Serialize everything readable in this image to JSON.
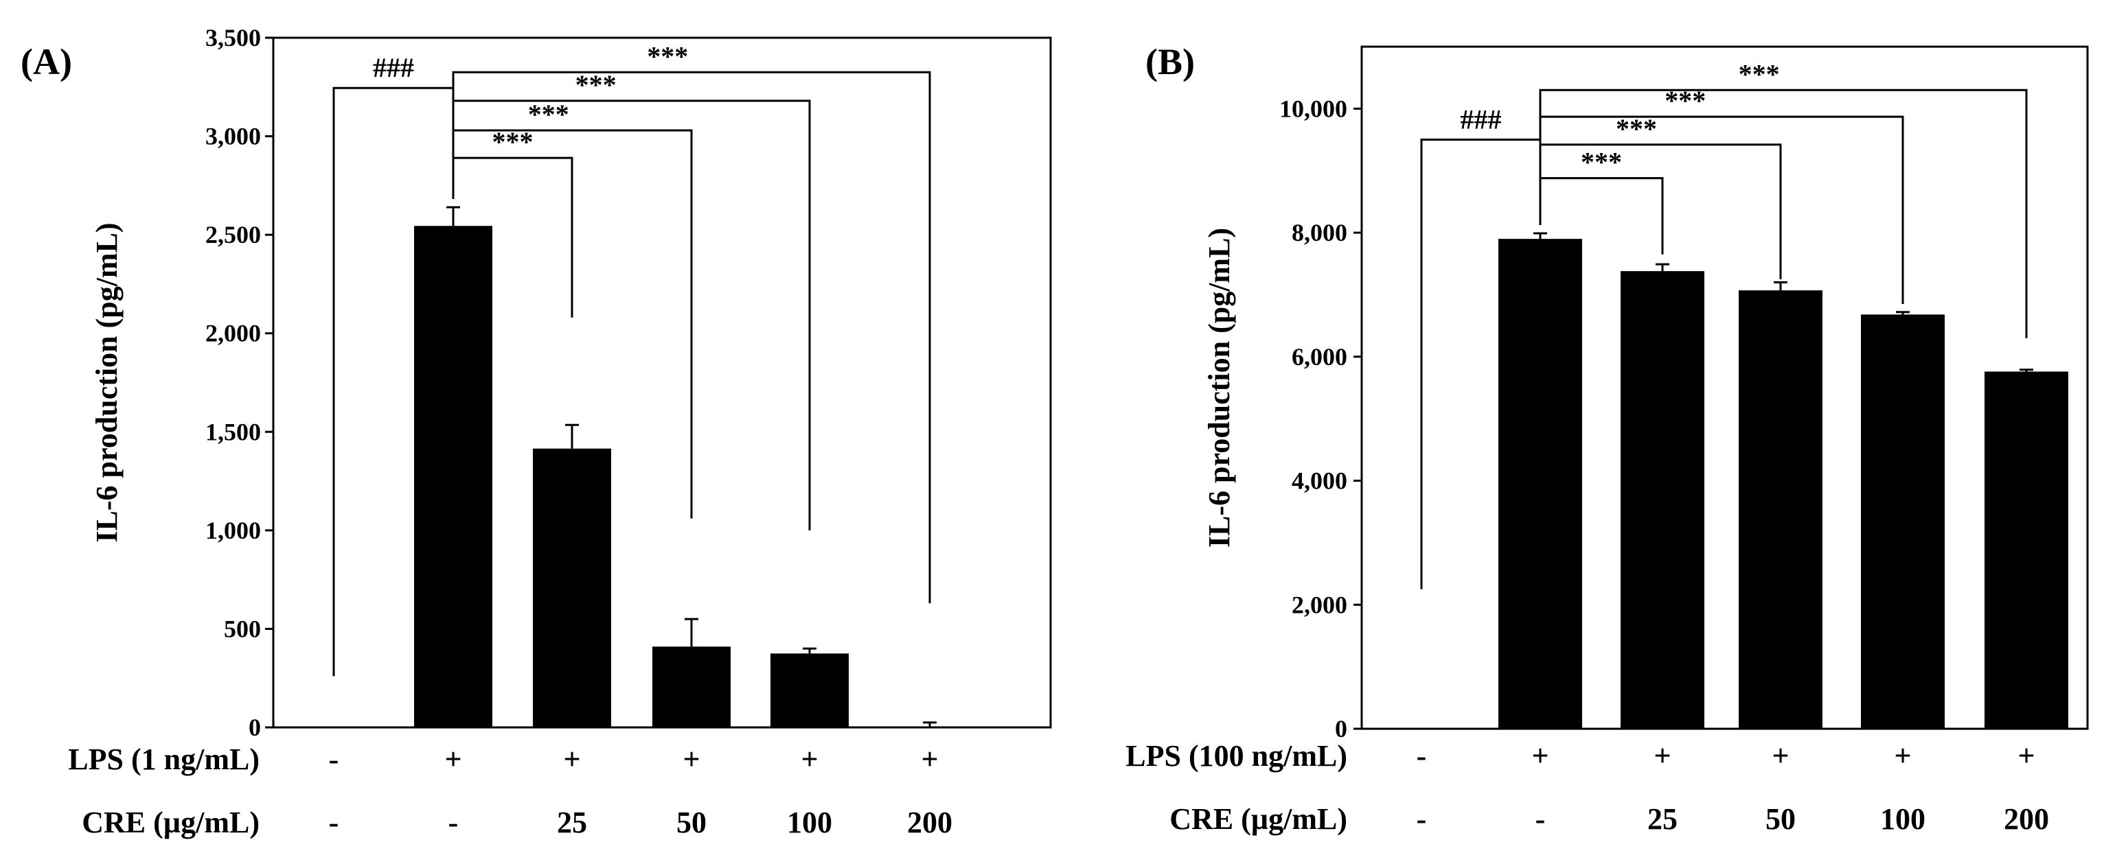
{
  "chart_data": [
    {
      "panel_label": "(A)",
      "type": "bar",
      "ylabel": "IL-6 production (pg/mL)",
      "ylim": [
        0,
        3500
      ],
      "yticks": [
        0,
        500,
        1000,
        1500,
        2000,
        2500,
        3000,
        3500
      ],
      "ytick_labels": [
        "0",
        "500",
        "1,000",
        "1,500",
        "2,000",
        "2,500",
        "3,000",
        "3,500"
      ],
      "bar_color": "#000000",
      "values": [
        0,
        2545,
        1415,
        410,
        375,
        5
      ],
      "errors": [
        0,
        95,
        120,
        140,
        25,
        20
      ],
      "row_labels": [
        "LPS (1 ng/mL)",
        "CRE (µg/mL)"
      ],
      "lps": [
        "-",
        "+",
        "+",
        "+",
        "+",
        "+"
      ],
      "cre": [
        "-",
        "-",
        "25",
        "50",
        "100",
        "200"
      ],
      "hash_label": "###",
      "hash_from": 0,
      "hash_to": 1,
      "hash_y": 3245,
      "hash_from_end": 260,
      "comparisons": [
        {
          "from": 1,
          "to": 2,
          "label": "***",
          "y": 2890,
          "end": 2080
        },
        {
          "from": 1,
          "to": 3,
          "label": "***",
          "y": 3030,
          "end": 1060
        },
        {
          "from": 1,
          "to": 4,
          "label": "***",
          "y": 3180,
          "end": 1000
        },
        {
          "from": 1,
          "to": 5,
          "label": "***",
          "y": 3325,
          "end": 630
        }
      ]
    },
    {
      "panel_label": "(B)",
      "type": "bar",
      "ylabel": "IL-6 production (pg/mL)",
      "ylim": [
        0,
        11000
      ],
      "yticks": [
        0,
        2000,
        4000,
        6000,
        8000,
        10000
      ],
      "ytick_labels": [
        "0",
        "2,000",
        "4,000",
        "6,000",
        "8,000",
        "10,000"
      ],
      "bar_color": "#000000",
      "values": [
        0,
        7900,
        7380,
        7070,
        6680,
        5760
      ],
      "errors": [
        0,
        90,
        110,
        130,
        40,
        30
      ],
      "row_labels": [
        "LPS (100 ng/mL)",
        "CRE (µg/mL)"
      ],
      "lps": [
        "-",
        "+",
        "+",
        "+",
        "+",
        "+"
      ],
      "cre": [
        "-",
        "-",
        "25",
        "50",
        "100",
        "200"
      ],
      "hash_label": "###",
      "hash_from": 0,
      "hash_to": 1,
      "hash_y": 9500,
      "hash_from_end": 2250,
      "comparisons": [
        {
          "from": 1,
          "to": 2,
          "label": "***",
          "y": 8880,
          "end": 7650
        },
        {
          "from": 1,
          "to": 3,
          "label": "***",
          "y": 9420,
          "end": 7250
        },
        {
          "from": 1,
          "to": 4,
          "label": "***",
          "y": 9870,
          "end": 6850
        },
        {
          "from": 1,
          "to": 5,
          "label": "***",
          "y": 10300,
          "end": 6300
        }
      ]
    }
  ]
}
